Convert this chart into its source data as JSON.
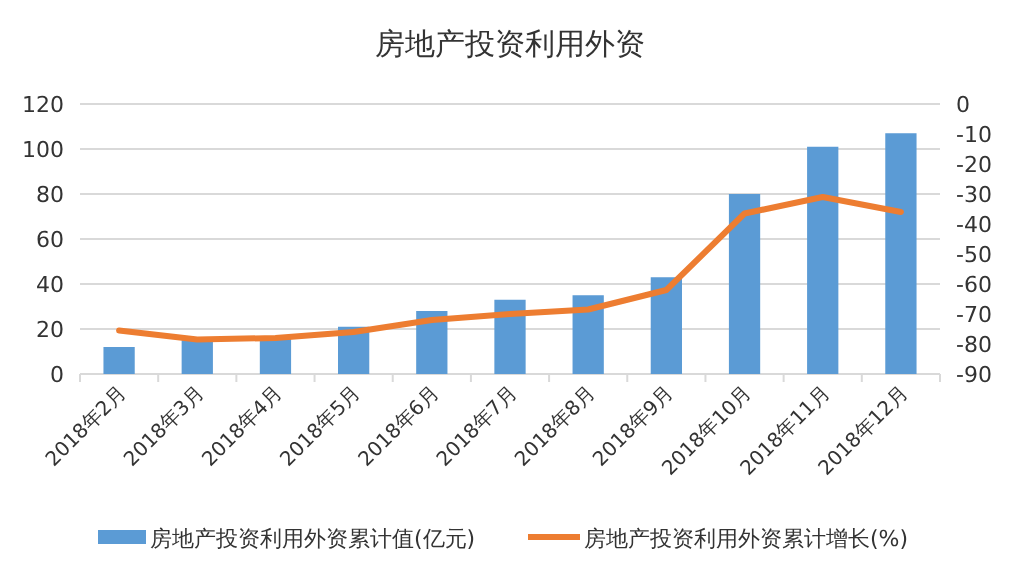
{
  "chart_data": {
    "type": "bar",
    "title": "房地产投资利用外资",
    "categories": [
      "2018年2月",
      "2018年3月",
      "2018年4月",
      "2018年5月",
      "2018年6月",
      "2018年7月",
      "2018年8月",
      "2018年9月",
      "2018年10月",
      "2018年11月",
      "2018年12月"
    ],
    "series": [
      {
        "name": "房地产投资利用外资累计值(亿元)",
        "color": "#5b9bd5",
        "values": [
          12,
          15,
          16,
          21,
          28,
          33,
          35,
          43,
          80,
          101,
          107
        ]
      },
      {
        "name": "房地产投资利用外资累计增长(%)",
        "type": "line",
        "axis": "y2",
        "color": "#ed7d31",
        "values": [
          -75.5,
          -78.5,
          -78,
          -76,
          -72,
          -70,
          -68.5,
          -62,
          -36.5,
          -31,
          -36
        ]
      }
    ],
    "ylim": [
      0,
      120
    ],
    "yticks": [
      0,
      20,
      40,
      60,
      80,
      100,
      120
    ],
    "y2lim": [
      -90,
      0
    ],
    "y2ticks": [
      -90,
      -80,
      -70,
      -60,
      -50,
      -40,
      -30,
      -20,
      -10,
      0
    ],
    "grid": "y",
    "legend": "bottom"
  }
}
